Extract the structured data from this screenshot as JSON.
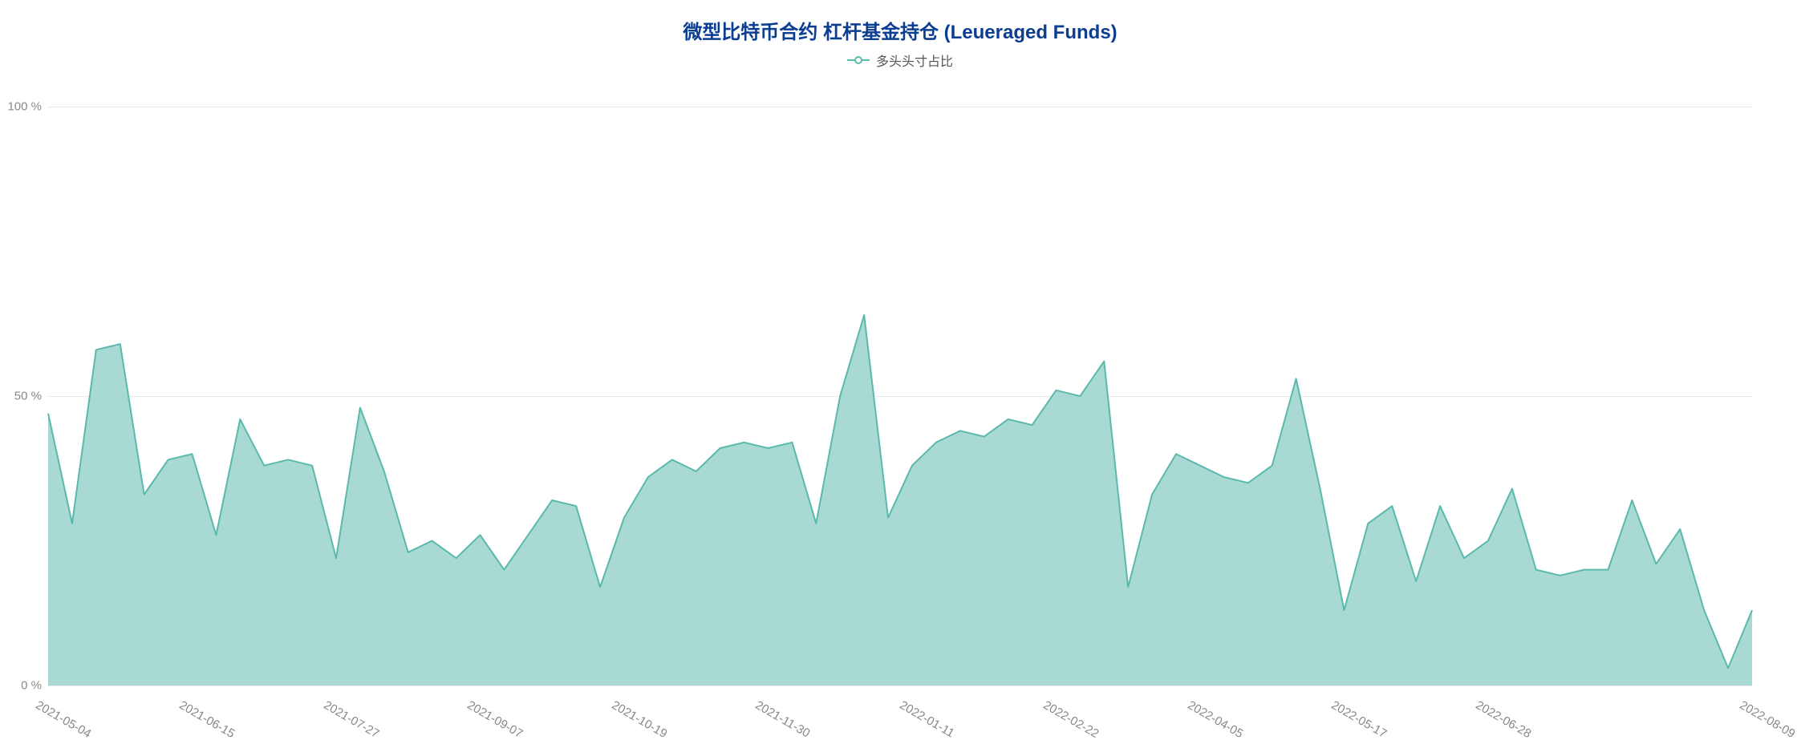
{
  "chart": {
    "type": "area",
    "title": "微型比特币合约 杠杆基金持仓 (Leueraged Funds)",
    "title_color": "#0b3d91",
    "title_fontsize": 24,
    "legend": {
      "label": "多头头寸占比",
      "line_color": "#5ab9ac",
      "marker_border_color": "#5ab9ac",
      "marker_fill": "#ffffff"
    },
    "series": {
      "name": "long_position_ratio",
      "values": [
        47,
        28,
        58,
        59,
        33,
        39,
        40,
        26,
        46,
        38,
        39,
        38,
        22,
        48,
        37,
        23,
        25,
        22,
        26,
        20,
        26,
        32,
        31,
        17,
        29,
        36,
        39,
        37,
        41,
        42,
        41,
        42,
        28,
        50,
        64,
        29,
        38,
        42,
        44,
        43,
        46,
        45,
        51,
        50,
        56,
        17,
        33,
        40,
        38,
        36,
        35,
        38,
        53,
        34,
        13,
        28,
        31,
        18,
        31,
        22,
        25,
        34,
        20,
        19,
        20,
        20,
        32,
        21,
        27,
        13,
        3,
        13
      ],
      "fill_color": "#99d4cb",
      "fill_opacity": 0.85,
      "stroke_color": "#5ab9ac",
      "stroke_width": 2
    },
    "y_axis": {
      "min": 0,
      "max": 105,
      "ticks": [
        0,
        50,
        100
      ],
      "tick_labels": [
        "0 %",
        "50 %",
        "100 %"
      ],
      "label_color": "#888888",
      "label_fontsize": 15
    },
    "x_axis": {
      "tick_indices": [
        0,
        6,
        12,
        18,
        24,
        30,
        36,
        42,
        48,
        54,
        60,
        66,
        71
      ],
      "tick_labels": [
        "2021-05-04",
        "2021-06-15",
        "2021-07-27",
        "2021-09-07",
        "2021-10-19",
        "2021-11-30",
        "2022-01-11",
        "2022-02-22",
        "2022-04-05",
        "2022-05-17",
        "2022-06-28",
        "",
        "2022-08-09"
      ],
      "label_color": "#888888",
      "label_fontsize": 15,
      "rotation_deg": 30
    },
    "grid": {
      "color": "#e8e8e8",
      "width": 1
    },
    "background_color": "#ffffff"
  }
}
